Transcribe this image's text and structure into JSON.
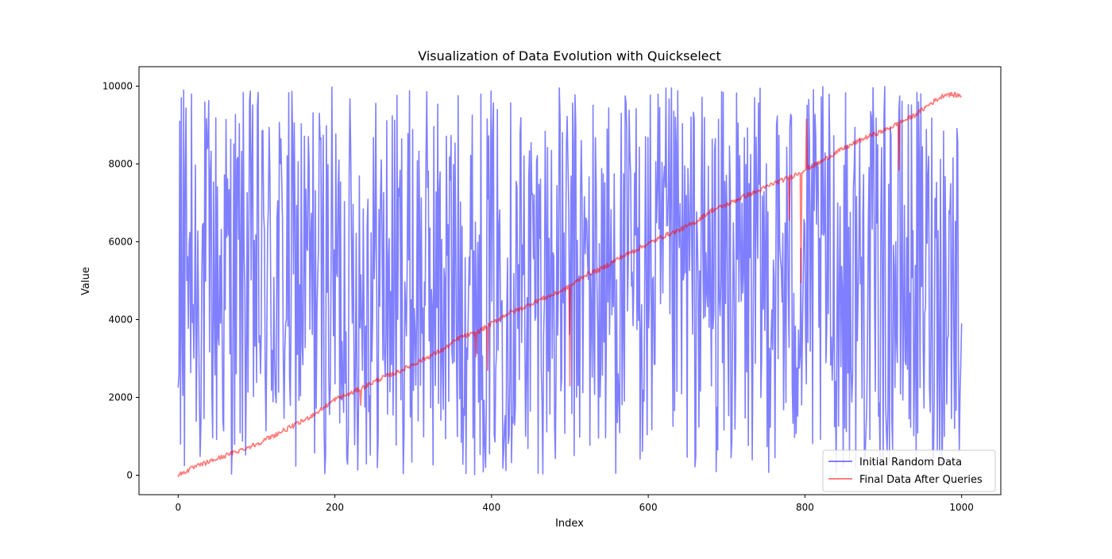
{
  "chart_data": {
    "type": "line",
    "title": "Visualization of Data Evolution with Quickselect",
    "xlabel": "Index",
    "ylabel": "Value",
    "xlim": [
      -50,
      1050
    ],
    "ylim": [
      -500,
      10500
    ],
    "xticks": [
      0,
      200,
      400,
      600,
      800,
      1000
    ],
    "yticks": [
      0,
      2000,
      4000,
      6000,
      8000,
      10000
    ],
    "grid": false,
    "legend_position": "lower-right",
    "series": [
      {
        "name": "Initial Random Data",
        "color": "#0000ff",
        "alpha": 0.5,
        "x_range": [
          0,
          1000
        ],
        "n_points": 1000,
        "values_min": 0,
        "values_max": 10000,
        "first_values": [
          2250,
          2600,
          9100,
          800,
          9700,
          3600,
          2050,
          9900,
          250,
          7800
        ]
      },
      {
        "name": "Final Data After Queries",
        "color": "#ff0000",
        "alpha": 0.5,
        "x": [
          0,
          20,
          40,
          60,
          80,
          100,
          120,
          140,
          160,
          180,
          200,
          220,
          240,
          260,
          280,
          300,
          320,
          340,
          360,
          380,
          400,
          420,
          440,
          460,
          480,
          500,
          520,
          540,
          560,
          580,
          600,
          620,
          640,
          660,
          680,
          700,
          720,
          740,
          760,
          780,
          800,
          820,
          840,
          860,
          880,
          900,
          920,
          940,
          960,
          980,
          1000
        ],
        "values": [
          0,
          200,
          350,
          500,
          650,
          800,
          1000,
          1200,
          1400,
          1650,
          1950,
          2100,
          2300,
          2500,
          2650,
          2850,
          3050,
          3250,
          3550,
          3650,
          3900,
          4150,
          4300,
          4500,
          4650,
          4850,
          5150,
          5300,
          5550,
          5750,
          5950,
          6150,
          6300,
          6500,
          6800,
          6950,
          7150,
          7300,
          7500,
          7650,
          7850,
          8050,
          8300,
          8500,
          8700,
          8850,
          9050,
          9250,
          9550,
          9800,
          9750
        ],
        "spikes": [
          {
            "x": 233,
            "value": 1800
          },
          {
            "x": 380,
            "value": 3050
          },
          {
            "x": 395,
            "value": 2700
          },
          {
            "x": 500,
            "value": 2300
          },
          {
            "x": 780,
            "value": 6550
          },
          {
            "x": 795,
            "value": 4950
          },
          {
            "x": 802,
            "value": 9150
          },
          {
            "x": 920,
            "value": 7850
          }
        ]
      }
    ]
  }
}
